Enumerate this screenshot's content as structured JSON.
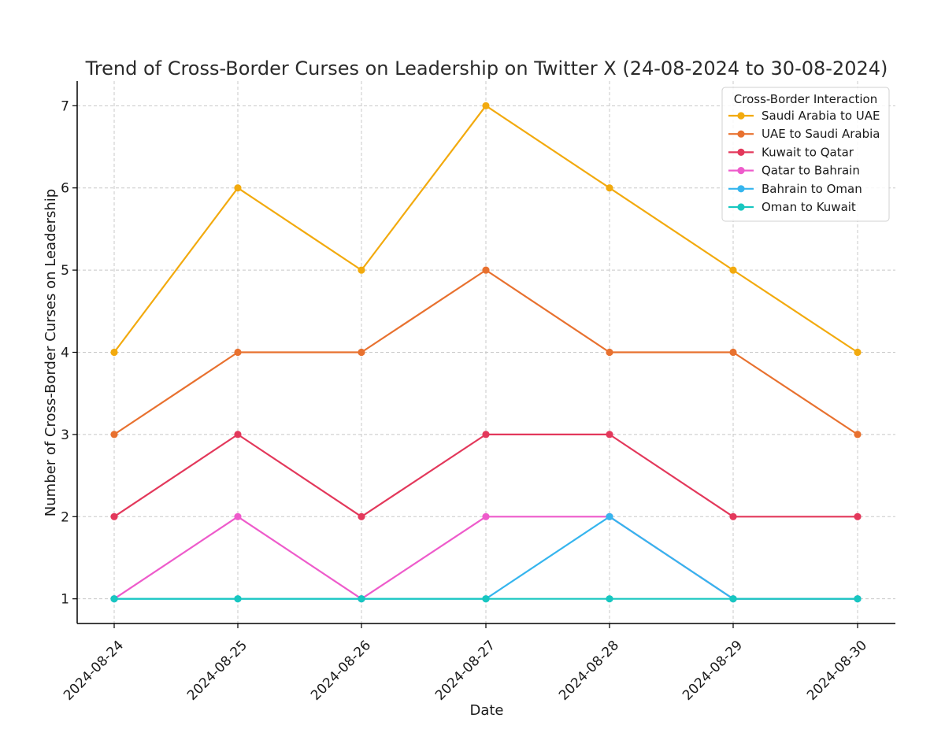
{
  "chart_data": {
    "type": "line",
    "title": "Trend of Cross-Border Curses on Leadership on Twitter X (24-08-2024 to 30-08-2024)",
    "xlabel": "Date",
    "ylabel": "Number of Cross-Border Curses on Leadership",
    "categories": [
      "2024-08-24",
      "2024-08-25",
      "2024-08-26",
      "2024-08-27",
      "2024-08-28",
      "2024-08-29",
      "2024-08-30"
    ],
    "yticks": [
      1,
      2,
      3,
      4,
      5,
      6,
      7
    ],
    "ylim": [
      0.7,
      7.3
    ],
    "grid": true,
    "legend": {
      "title": "Cross-Border Interaction",
      "placement": "top-right"
    },
    "series": [
      {
        "name": "Saudi Arabia to UAE",
        "color": "#F2AA0E",
        "values": [
          4,
          6,
          5,
          7,
          6,
          5,
          4
        ]
      },
      {
        "name": "UAE to Saudi Arabia",
        "color": "#E8712F",
        "values": [
          3,
          4,
          4,
          5,
          4,
          4,
          3
        ]
      },
      {
        "name": "Kuwait to Qatar",
        "color": "#E3385B",
        "values": [
          2,
          3,
          2,
          3,
          3,
          2,
          2
        ]
      },
      {
        "name": "Qatar to Bahrain",
        "color": "#EE5BCB",
        "values": [
          1,
          2,
          1,
          2,
          2,
          1,
          1
        ]
      },
      {
        "name": "Bahrain to Oman",
        "color": "#35B5EE",
        "values": [
          1,
          1,
          1,
          1,
          2,
          1,
          1
        ]
      },
      {
        "name": "Oman to Kuwait",
        "color": "#18C7C0",
        "values": [
          1,
          1,
          1,
          1,
          1,
          1,
          1
        ]
      }
    ]
  }
}
